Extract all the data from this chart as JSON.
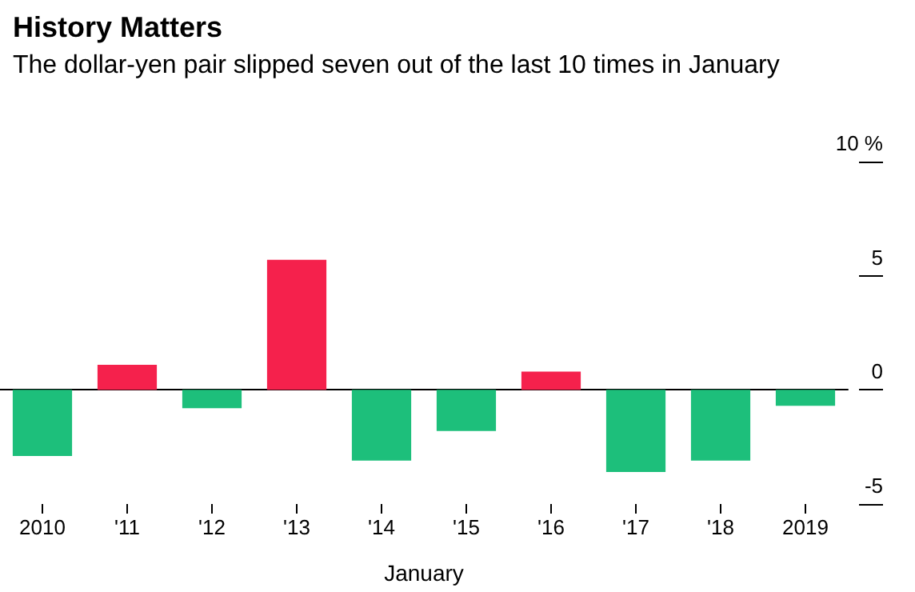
{
  "chart_data": {
    "type": "bar",
    "title": "History Matters",
    "subtitle": "The dollar-yen pair slipped seven out of the last 10 times in January",
    "xlabel": "January",
    "categories": [
      "2010",
      "'11",
      "'12",
      "'13",
      "'14",
      "'15",
      "'16",
      "'17",
      "'18",
      "2019"
    ],
    "values": [
      -2.9,
      1.1,
      -0.8,
      5.7,
      -3.1,
      -1.8,
      0.8,
      -3.6,
      -3.1,
      -0.7
    ],
    "colors": [
      "#1dbf7b",
      "#f5214c",
      "#1dbf7b",
      "#f5214c",
      "#1dbf7b",
      "#1dbf7b",
      "#f5214c",
      "#1dbf7b",
      "#1dbf7b",
      "#1dbf7b"
    ],
    "ylim": [
      -5,
      10
    ],
    "yticks": [
      -5,
      0,
      5,
      {
        "value": 10,
        "label": "10 %"
      }
    ],
    "tick_labels": true
  }
}
